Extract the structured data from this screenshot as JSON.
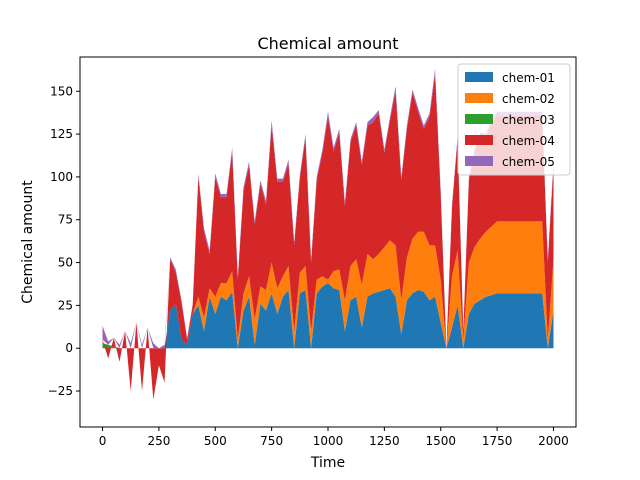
{
  "chart_data": {
    "type": "area",
    "title": "Chemical amount",
    "xlabel": "Time",
    "ylabel": "Chemical amount",
    "xlim": [
      -100,
      2100
    ],
    "ylim": [
      -46,
      170
    ],
    "xticks": [
      0,
      250,
      500,
      750,
      1000,
      1250,
      1500,
      1750,
      2000
    ],
    "yticks": [
      -25,
      0,
      25,
      50,
      75,
      100,
      125,
      150
    ],
    "legend_position": "top-right",
    "grid": false,
    "x": [
      0,
      25,
      50,
      75,
      100,
      125,
      150,
      175,
      200,
      225,
      250,
      275,
      300,
      325,
      350,
      375,
      400,
      425,
      450,
      475,
      500,
      525,
      550,
      575,
      600,
      625,
      650,
      675,
      700,
      725,
      750,
      775,
      800,
      825,
      850,
      875,
      900,
      925,
      950,
      975,
      1000,
      1025,
      1050,
      1075,
      1100,
      1125,
      1150,
      1175,
      1200,
      1225,
      1250,
      1275,
      1300,
      1325,
      1350,
      1375,
      1400,
      1425,
      1450,
      1475,
      1500,
      1525,
      1550,
      1575,
      1600,
      1625,
      1650,
      1675,
      1700,
      1725,
      1750,
      1775,
      1800,
      1825,
      1850,
      1875,
      1900,
      1925,
      1950,
      1975,
      2000
    ],
    "series": [
      {
        "name": "chem-01",
        "color": "#1f77b4",
        "values": [
          0,
          0,
          0,
          0,
          0,
          0,
          0,
          0,
          0,
          0,
          0,
          0,
          22,
          26,
          5,
          2,
          20,
          25,
          10,
          30,
          20,
          30,
          28,
          33,
          0,
          22,
          30,
          2,
          26,
          22,
          32,
          20,
          30,
          34,
          0,
          32,
          34,
          0,
          32,
          36,
          38,
          35,
          34,
          10,
          28,
          30,
          12,
          30,
          32,
          33,
          34,
          35,
          30,
          8,
          28,
          32,
          34,
          33,
          28,
          30,
          15,
          0,
          12,
          25,
          0,
          20,
          26,
          28,
          30,
          31,
          32,
          32,
          32,
          32,
          32,
          32,
          32,
          32,
          32,
          0,
          22
        ]
      },
      {
        "name": "chem-02",
        "color": "#ff7f0e",
        "values": [
          0,
          0,
          0,
          0,
          0,
          0,
          0,
          0,
          0,
          0,
          0,
          0,
          0,
          0,
          0,
          0,
          0,
          5,
          8,
          5,
          10,
          8,
          10,
          12,
          5,
          10,
          12,
          15,
          10,
          12,
          18,
          15,
          12,
          14,
          10,
          12,
          14,
          10,
          8,
          6,
          2,
          10,
          12,
          18,
          20,
          22,
          25,
          25,
          20,
          22,
          25,
          28,
          30,
          20,
          25,
          32,
          34,
          35,
          32,
          30,
          25,
          0,
          30,
          32,
          5,
          30,
          33,
          36,
          38,
          40,
          42,
          42,
          42,
          42,
          42,
          42,
          42,
          42,
          42,
          5,
          30
        ]
      },
      {
        "name": "chem-03",
        "color": "#2ca02c",
        "values": [
          3,
          2,
          1,
          0,
          0,
          0,
          0,
          0,
          0,
          0,
          0,
          0,
          0,
          0,
          0,
          0,
          0,
          0,
          0,
          0,
          0,
          0,
          0,
          0,
          0,
          0,
          0,
          0,
          0,
          0,
          0,
          0,
          0,
          0,
          0,
          0,
          0,
          0,
          0,
          0,
          0,
          0,
          0,
          0,
          0,
          0,
          0,
          0,
          0,
          0,
          0,
          0,
          0,
          0,
          0,
          0,
          0,
          0,
          0,
          0,
          0,
          0,
          0,
          0,
          0,
          0,
          0,
          0,
          0,
          0,
          0,
          0,
          0,
          0,
          0,
          0,
          0,
          0,
          0,
          0,
          0
        ]
      },
      {
        "name": "chem-04",
        "color": "#d62728",
        "values": [
          2,
          -6,
          5,
          -8,
          10,
          -25,
          15,
          -25,
          12,
          -30,
          -10,
          -20,
          30,
          18,
          22,
          3,
          5,
          70,
          50,
          20,
          70,
          50,
          50,
          70,
          35,
          60,
          65,
          55,
          60,
          50,
          80,
          62,
          55,
          60,
          50,
          55,
          75,
          40,
          58,
          72,
          95,
          70,
          80,
          55,
          72,
          78,
          70,
          75,
          80,
          82,
          55,
          70,
          90,
          70,
          75,
          85,
          70,
          60,
          75,
          100,
          50,
          0,
          40,
          65,
          5,
          48,
          55,
          60,
          55,
          60,
          62,
          62,
          62,
          62,
          62,
          62,
          62,
          62,
          62,
          45,
          55
        ]
      },
      {
        "name": "chem-05",
        "color": "#9467bd",
        "values": [
          8,
          2,
          0,
          2,
          0,
          3,
          0,
          2,
          0,
          3,
          0,
          2,
          1,
          2,
          1,
          1,
          1,
          2,
          2,
          2,
          2,
          2,
          2,
          2,
          2,
          2,
          2,
          2,
          2,
          2,
          3,
          2,
          2,
          2,
          2,
          2,
          2,
          2,
          2,
          2,
          3,
          2,
          2,
          2,
          2,
          2,
          2,
          2,
          3,
          2,
          2,
          2,
          3,
          2,
          2,
          2,
          2,
          2,
          2,
          3,
          2,
          0,
          2,
          2,
          0,
          2,
          2,
          2,
          2,
          2,
          2,
          2,
          2,
          2,
          2,
          2,
          2,
          2,
          2,
          2,
          2
        ]
      }
    ]
  }
}
